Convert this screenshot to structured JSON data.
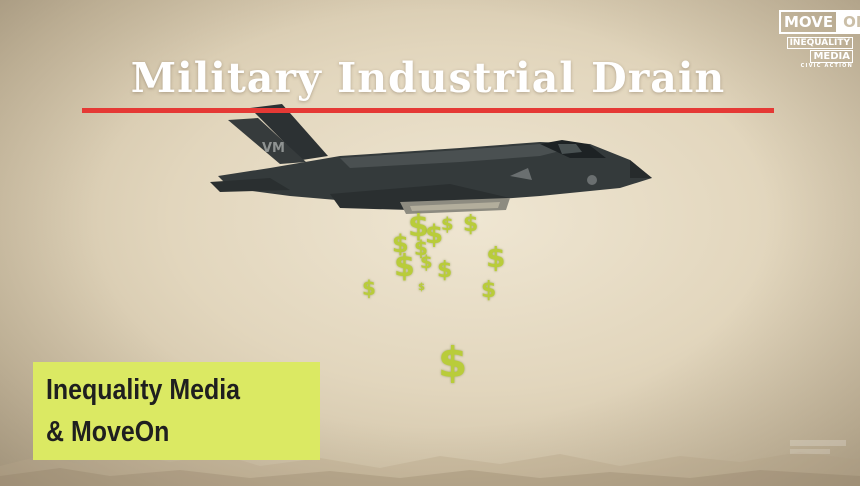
{
  "video": {
    "title": "Military Industrial Drain",
    "caption_lines": [
      "Inequality Media",
      "& MoveOn"
    ],
    "logo": {
      "move": "MOVE",
      "on": "ON",
      "line1": "INEQUALITY",
      "line2": "MEDIA",
      "line3": "CIVIC ACTION"
    },
    "falling_symbol": "$",
    "colors": {
      "underline": "#e53935",
      "caption_bg": "#dbe963",
      "money": "#b9cc3a"
    }
  }
}
